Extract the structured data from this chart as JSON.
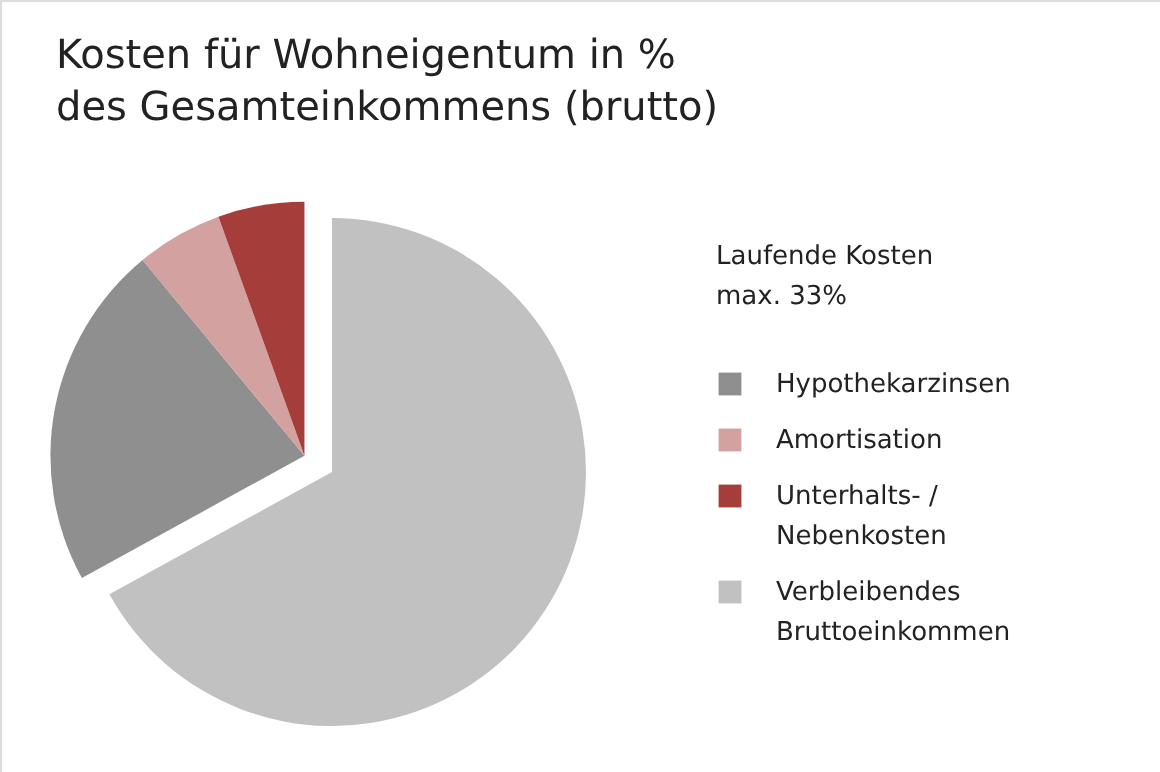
{
  "chart_data": {
    "type": "pie",
    "title": "Kosten für Wohneigentum in %\ndes Gesamteinkommens (brutto)",
    "legend_title": "Laufende Kosten\nmax. 33%",
    "categories": [
      "Hypothekarzinsen",
      "Amortisation",
      "Unterhalts- /\nNebenkosten",
      "Verbleibendes\nBruttoeinkommen"
    ],
    "values": [
      22,
      5.5,
      5.5,
      67
    ],
    "colors": [
      "#8f8f8f",
      "#d3a19f",
      "#a53e3b",
      "#c1c1c1"
    ],
    "legend": "right"
  }
}
